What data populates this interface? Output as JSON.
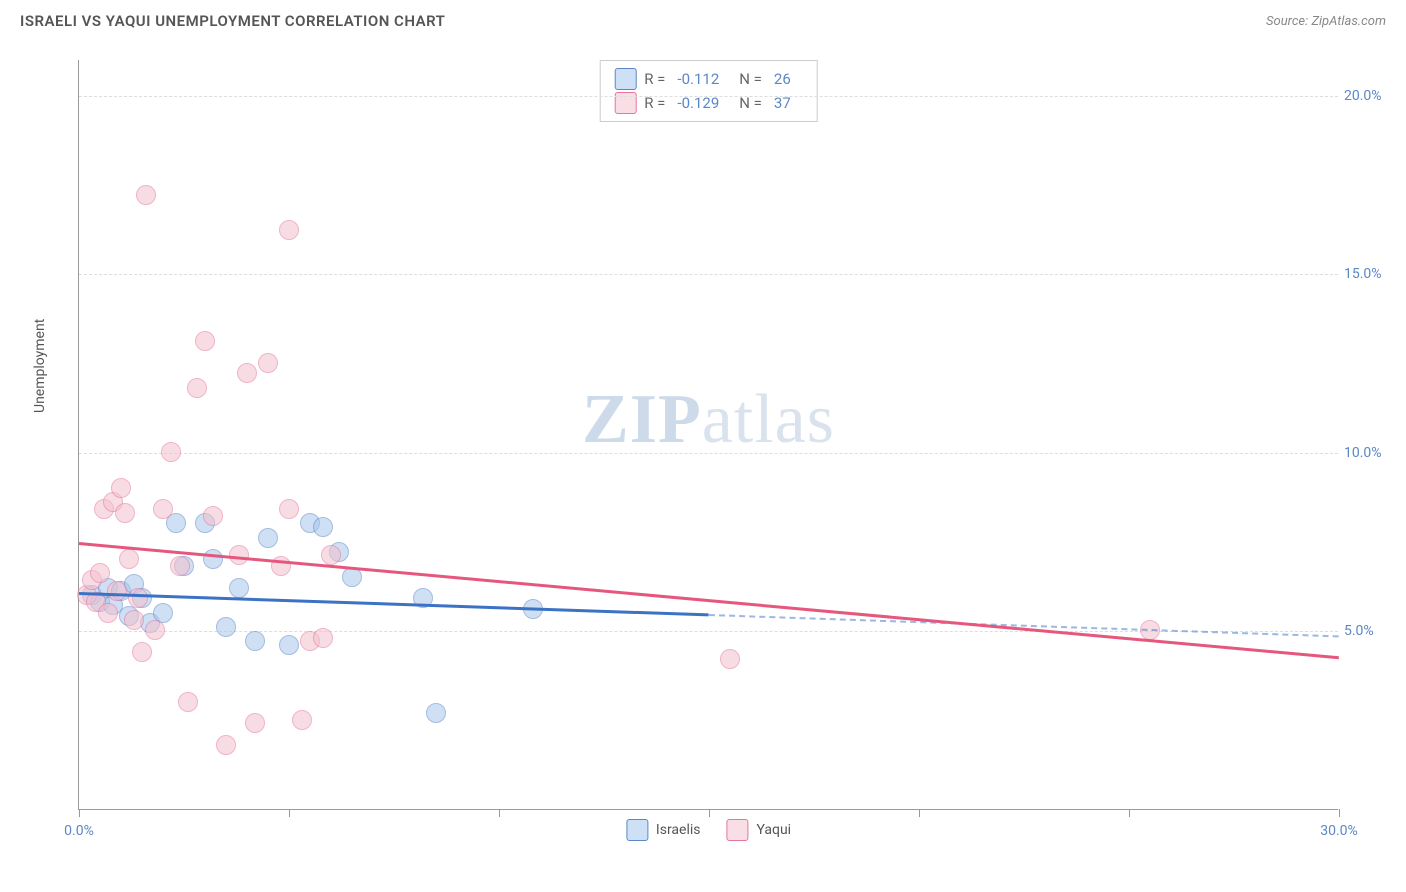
{
  "header": {
    "title": "ISRAELI VS YAQUI UNEMPLOYMENT CORRELATION CHART",
    "source_prefix": "Source: ",
    "source_name": "ZipAtlas.com"
  },
  "watermark": {
    "zip": "ZIP",
    "atlas": "atlas"
  },
  "chart": {
    "type": "scatter",
    "ylabel": "Unemployment",
    "xlim": [
      0,
      30
    ],
    "ylim": [
      0,
      21
    ],
    "x_ticks": [
      0,
      5,
      10,
      15,
      20,
      25,
      30
    ],
    "x_tick_labels": {
      "0": "0.0%",
      "30": "30.0%"
    },
    "y_gridlines": [
      5,
      10,
      15,
      20
    ],
    "y_tick_labels": {
      "5": "5.0%",
      "10": "10.0%",
      "15": "15.0%",
      "20": "20.0%"
    },
    "background_color": "#ffffff",
    "grid_color": "#dddddd",
    "axis_color": "#999999",
    "tick_label_color": "#5b87c7",
    "marker_radius": 10,
    "marker_opacity": 0.55,
    "series": [
      {
        "name": "Israelis",
        "color_fill": "#a8c6ec",
        "color_stroke": "#5b87c7",
        "trend_color": "#3b72c4",
        "swatch_fill": "#cde0f5",
        "R": "-0.112",
        "N": "26",
        "trend": {
          "x1": 0,
          "y1": 6.1,
          "x2": 15,
          "y2": 5.5,
          "x2_dash": 30,
          "y2_dash": 4.9
        },
        "points": [
          [
            0.3,
            6.0
          ],
          [
            0.5,
            5.8
          ],
          [
            0.7,
            6.2
          ],
          [
            0.8,
            5.7
          ],
          [
            1.0,
            6.1
          ],
          [
            1.2,
            5.4
          ],
          [
            1.3,
            6.3
          ],
          [
            1.5,
            5.9
          ],
          [
            1.7,
            5.2
          ],
          [
            2.0,
            5.5
          ],
          [
            2.3,
            8.0
          ],
          [
            2.5,
            6.8
          ],
          [
            3.0,
            8.0
          ],
          [
            3.2,
            7.0
          ],
          [
            3.5,
            5.1
          ],
          [
            3.8,
            6.2
          ],
          [
            4.2,
            4.7
          ],
          [
            4.5,
            7.6
          ],
          [
            5.0,
            4.6
          ],
          [
            5.5,
            8.0
          ],
          [
            5.8,
            7.9
          ],
          [
            6.2,
            7.2
          ],
          [
            6.5,
            6.5
          ],
          [
            8.2,
            5.9
          ],
          [
            8.5,
            2.7
          ],
          [
            10.8,
            5.6
          ]
        ]
      },
      {
        "name": "Yaqui",
        "color_fill": "#f4c1cd",
        "color_stroke": "#e576a0",
        "trend_color": "#e5577d",
        "swatch_fill": "#fadee6",
        "R": "-0.129",
        "N": "37",
        "trend": {
          "x1": 0,
          "y1": 7.5,
          "x2": 30,
          "y2": 4.3
        },
        "points": [
          [
            0.2,
            6.0
          ],
          [
            0.3,
            6.4
          ],
          [
            0.4,
            5.8
          ],
          [
            0.5,
            6.6
          ],
          [
            0.6,
            8.4
          ],
          [
            0.7,
            5.5
          ],
          [
            0.8,
            8.6
          ],
          [
            0.9,
            6.1
          ],
          [
            1.0,
            9.0
          ],
          [
            1.1,
            8.3
          ],
          [
            1.2,
            7.0
          ],
          [
            1.3,
            5.3
          ],
          [
            1.5,
            4.4
          ],
          [
            1.6,
            17.2
          ],
          [
            1.8,
            5.0
          ],
          [
            2.0,
            8.4
          ],
          [
            2.2,
            10.0
          ],
          [
            2.4,
            6.8
          ],
          [
            2.6,
            3.0
          ],
          [
            2.8,
            11.8
          ],
          [
            3.0,
            13.1
          ],
          [
            3.2,
            8.2
          ],
          [
            3.5,
            1.8
          ],
          [
            3.8,
            7.1
          ],
          [
            4.0,
            12.2
          ],
          [
            4.2,
            2.4
          ],
          [
            4.5,
            12.5
          ],
          [
            4.8,
            6.8
          ],
          [
            5.0,
            8.4
          ],
          [
            5.3,
            2.5
          ],
          [
            5.5,
            4.7
          ],
          [
            5.8,
            4.8
          ],
          [
            5.0,
            16.2
          ],
          [
            6.0,
            7.1
          ],
          [
            15.5,
            4.2
          ],
          [
            25.5,
            5.0
          ],
          [
            1.4,
            5.9
          ]
        ]
      }
    ],
    "bottom_legend": [
      {
        "label": "Israelis",
        "fill": "#cde0f5",
        "stroke": "#5b87c7"
      },
      {
        "label": "Yaqui",
        "fill": "#fadee6",
        "stroke": "#e576a0"
      }
    ],
    "legend_box_labels": {
      "R": "R  =",
      "N": "N  ="
    }
  }
}
